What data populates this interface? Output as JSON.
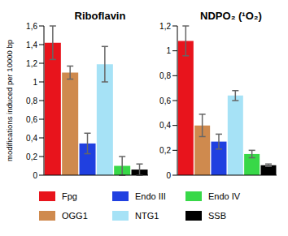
{
  "chart_data": [
    {
      "type": "bar",
      "title": "Riboflavin",
      "y_label": "modifications induced per 10000 bp",
      "categories": [
        "Fpg",
        "OGG1",
        "Endo III",
        "NTG1",
        "Endo IV",
        "SSB"
      ],
      "values": [
        1.42,
        1.1,
        0.34,
        1.19,
        0.1,
        0.06
      ],
      "errors": [
        0.18,
        0.07,
        0.11,
        0.19,
        0.1,
        0.06
      ],
      "colors": [
        "#e8141c",
        "#cf8a4e",
        "#2040e0",
        "#a6e2f6",
        "#38d848",
        "#000000"
      ],
      "ylim": [
        0,
        1.6
      ],
      "yticks": [
        0,
        {
          "value": 0.2,
          "label": "0,2"
        },
        {
          "value": 0.4,
          "label": "0,4"
        },
        {
          "value": 0.6,
          "label": "0,6"
        },
        {
          "value": 0.8,
          "label": "0,8"
        },
        1,
        {
          "value": 1.2,
          "label": "1,2"
        },
        {
          "value": 1.4,
          "label": "1,4"
        },
        {
          "value": 1.6,
          "label": "1,6"
        }
      ],
      "tick_labels": "y",
      "legend": "bottom"
    },
    {
      "type": "bar",
      "title": "NDPO₂ (¹O₂)",
      "categories": [
        "Fpg",
        "OGG1",
        "Endo III",
        "NTG1",
        "Endo IV",
        "SSB"
      ],
      "values": [
        1.08,
        0.4,
        0.27,
        0.64,
        0.17,
        0.08
      ],
      "errors": [
        0.12,
        0.09,
        0.06,
        0.04,
        0.03,
        0.01
      ],
      "colors": [
        "#e8141c",
        "#cf8a4e",
        "#2040e0",
        "#a6e2f6",
        "#38d848",
        "#000000"
      ],
      "ylim": [
        0,
        1.2
      ],
      "yticks": [
        0,
        {
          "value": 0.2,
          "label": "0,2"
        },
        {
          "value": 0.4,
          "label": "0,4"
        },
        {
          "value": 0.6,
          "label": "0,6"
        },
        {
          "value": 0.8,
          "label": "0,8"
        },
        1,
        {
          "value": 1.2,
          "label": "1,2"
        }
      ],
      "tick_labels": "y",
      "legend": "bottom"
    }
  ]
}
